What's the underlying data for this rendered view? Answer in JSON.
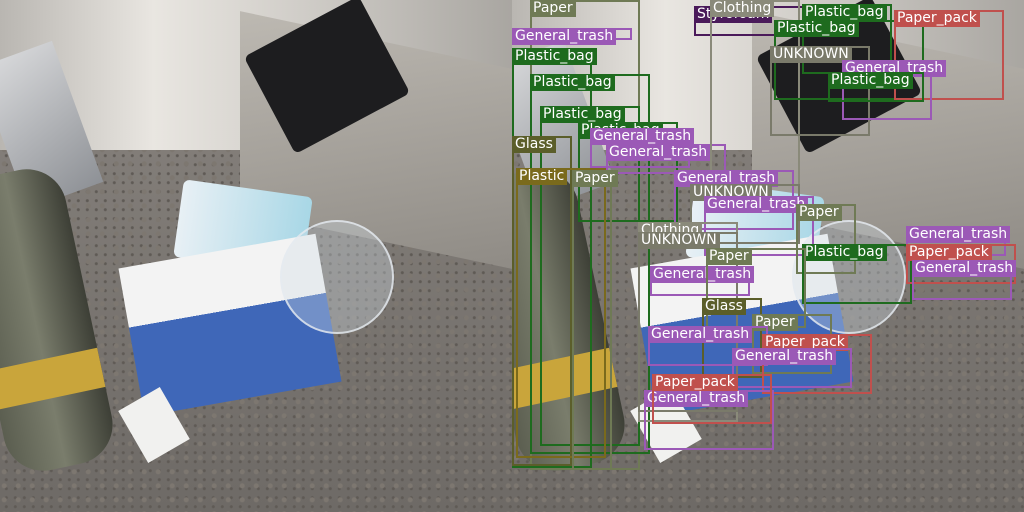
{
  "colors": {
    "General_trash": "#9b59b6",
    "Plastic_bag": "#1e6b1e",
    "Paper": "#6f7a55",
    "Glass": "#5b5e2a",
    "Plastic": "#7a6a1c",
    "Clothing": "#8a8a7a",
    "Paper_pack": "#c0504d",
    "UNKNOWN": "#7a7a6a",
    "Styrofoam": "#4a1a5a"
  },
  "detections": [
    {
      "label": "Paper",
      "cls": "Paper"
    },
    {
      "label": "General_trash",
      "cls": "General_trash"
    },
    {
      "label": "Plastic_bag",
      "cls": "Plastic_bag"
    },
    {
      "label": "Plastic_bag",
      "cls": "Plastic_bag"
    },
    {
      "label": "Plastic_bag",
      "cls": "Plastic_bag"
    },
    {
      "label": "Plastic_bag",
      "cls": "Plastic_bag"
    },
    {
      "label": "Glass",
      "cls": "Glass"
    },
    {
      "label": "General_trash",
      "cls": "General_trash"
    },
    {
      "label": "General_trash",
      "cls": "General_trash"
    },
    {
      "label": "Plastic",
      "cls": "Plastic"
    },
    {
      "label": "Paper",
      "cls": "Paper"
    },
    {
      "label": "Styrofoam",
      "cls": "Styrofoam"
    },
    {
      "label": "Clothing",
      "cls": "Clothing"
    },
    {
      "label": "Plastic_bag",
      "cls": "Plastic_bag"
    },
    {
      "label": "Plastic_bag",
      "cls": "Plastic_bag"
    },
    {
      "label": "Paper_pack",
      "cls": "Paper_pack"
    },
    {
      "label": "UNKNOWN",
      "cls": "UNKNOWN"
    },
    {
      "label": "General_trash",
      "cls": "General_trash"
    },
    {
      "label": "General_trash",
      "cls": "General_trash"
    },
    {
      "label": "Plastic_bag",
      "cls": "Plastic_bag"
    },
    {
      "label": "UNKNOWN",
      "cls": "UNKNOWN"
    },
    {
      "label": "General_trash",
      "cls": "General_trash"
    },
    {
      "label": "Paper",
      "cls": "Paper"
    },
    {
      "label": "Clothing",
      "cls": "Clothing"
    },
    {
      "label": "UNKNOWN",
      "cls": "UNKNOWN"
    },
    {
      "label": "General_trash",
      "cls": "General_trash"
    },
    {
      "label": "Plastic_bag",
      "cls": "Plastic_bag"
    },
    {
      "label": "General_trash",
      "cls": "General_trash"
    },
    {
      "label": "Paper_pack",
      "cls": "Paper_pack"
    },
    {
      "label": "Paper",
      "cls": "Paper"
    },
    {
      "label": "General_trash",
      "cls": "General_trash"
    },
    {
      "label": "Glass",
      "cls": "Glass"
    },
    {
      "label": "Paper",
      "cls": "Paper"
    },
    {
      "label": "General_trash",
      "cls": "General_trash"
    },
    {
      "label": "Paper_pack",
      "cls": "Paper_pack"
    },
    {
      "label": "General_trash",
      "cls": "General_trash"
    },
    {
      "label": "General_trash",
      "cls": "General_trash"
    },
    {
      "label": "Paper_pack",
      "cls": "Paper_pack"
    }
  ]
}
